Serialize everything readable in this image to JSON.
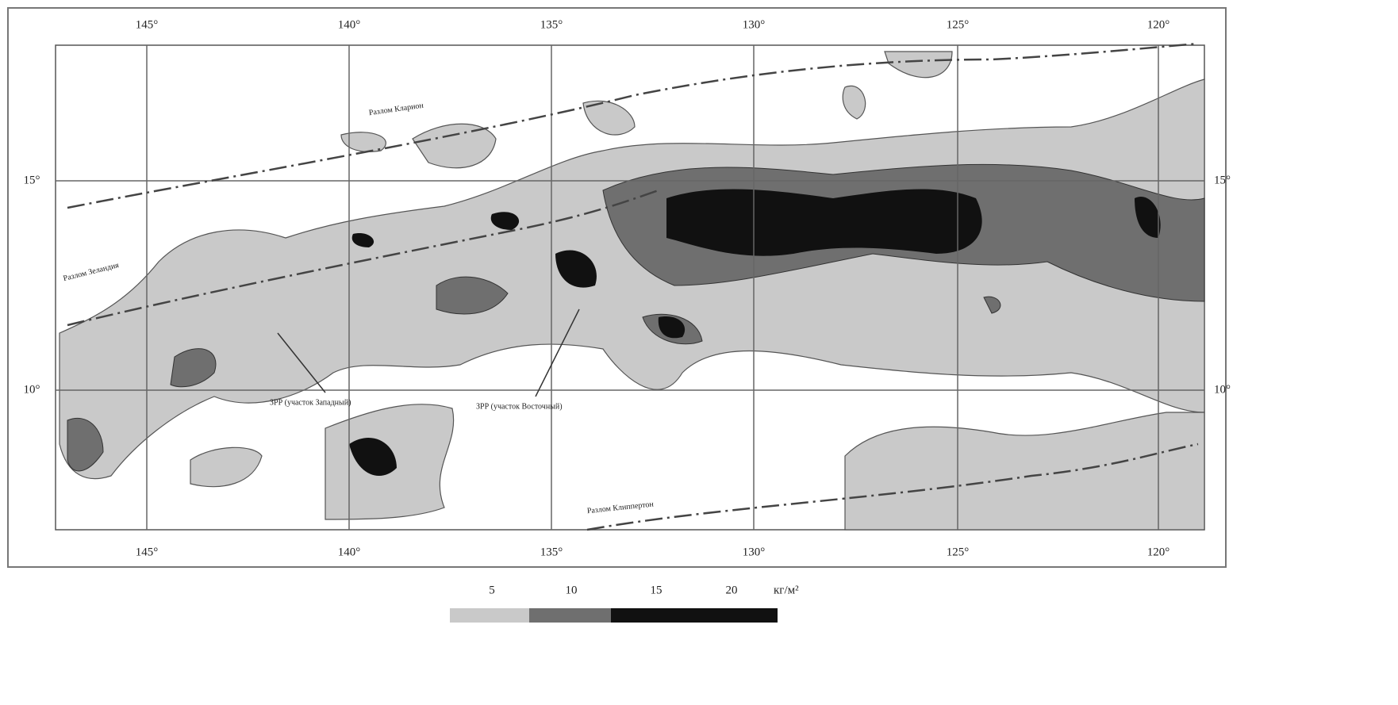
{
  "map": {
    "lon_labels": [
      "145°",
      "140°",
      "135°",
      "130°",
      "125°",
      "120°"
    ],
    "lat_labels": [
      "15°",
      "10°"
    ],
    "fault_labels": [
      "Разлом Кларион",
      "Разлом Зеландия",
      "Разлом Клиппертон"
    ],
    "area_labels": [
      "ЗРР (участок Западный)",
      "ЗРР (участок Восточный)"
    ],
    "legend": {
      "ticks": [
        "5",
        "10",
        "15",
        "20"
      ],
      "unit": "кг/м²"
    }
  }
}
